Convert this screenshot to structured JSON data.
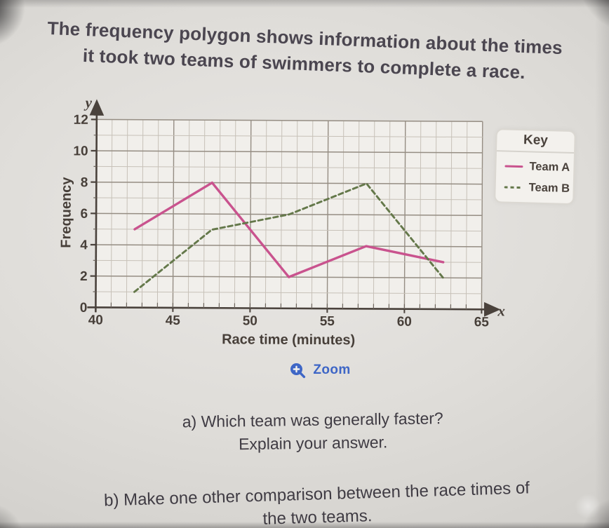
{
  "title": {
    "line1": "The frequency polygon shows information about the times",
    "line2": "it took two teams of swimmers to complete a race."
  },
  "chart_data": {
    "type": "line",
    "x": [
      42.5,
      47.5,
      52.5,
      57.5,
      62.5
    ],
    "series": [
      {
        "name": "Team A",
        "values": [
          5,
          8,
          2,
          4,
          3
        ],
        "color": "#c9538e",
        "style": "solid"
      },
      {
        "name": "Team B",
        "values": [
          1,
          5,
          6,
          8,
          2
        ],
        "color": "#64784a",
        "style": "dashed"
      }
    ],
    "title": "",
    "xlabel": "Race time (minutes)",
    "ylabel": "Frequency",
    "x_axis_letter": "x",
    "y_axis_letter": "y",
    "xlim": [
      40,
      65
    ],
    "ylim": [
      0,
      12
    ],
    "x_ticks": [
      40,
      45,
      50,
      55,
      60,
      65
    ],
    "y_ticks": [
      0,
      2,
      4,
      6,
      8,
      10,
      12
    ],
    "x_minor_step": 1,
    "y_minor_step": 1,
    "grid": true,
    "legend": {
      "title": "Key",
      "position": "right"
    }
  },
  "zoom_button": {
    "label": "Zoom"
  },
  "questions": {
    "a_line1": "a) Which team was generally faster?",
    "a_line2": "Explain your answer.",
    "b_line1": "b) Make one other comparison between the race times of",
    "b_line2": "the two teams."
  },
  "colors": {
    "zoom_blue": "#3e66c6",
    "axis_ink": "#4a423c",
    "grid_minor": "#c7c1b8",
    "grid_major": "#958d83",
    "paper": "#f1efeb"
  }
}
